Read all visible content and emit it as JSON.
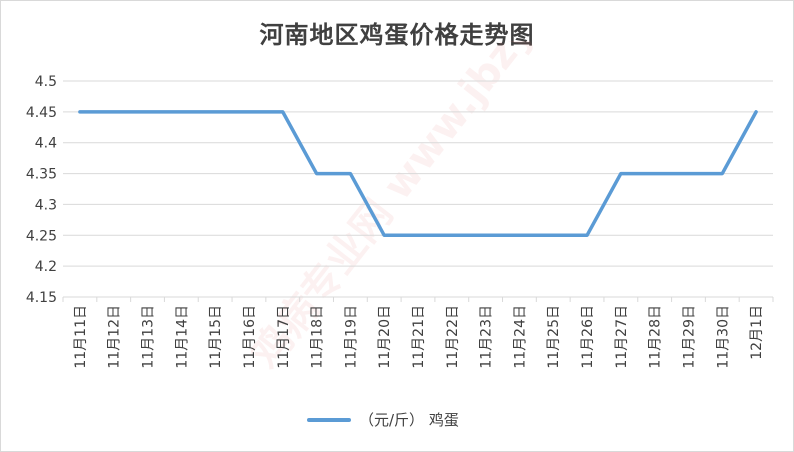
{
  "chart_data": {
    "type": "line",
    "title": "河南地区鸡蛋价格走势图",
    "categories": [
      "11月11日",
      "11月12日",
      "11月13日",
      "11月14日",
      "11月15日",
      "11月16日",
      "11月17日",
      "11月18日",
      "11月19日",
      "11月20日",
      "11月21日",
      "11月22日",
      "11月23日",
      "11月24日",
      "11月25日",
      "11月26日",
      "11月27日",
      "11月28日",
      "11月29日",
      "11月30日",
      "12月1日"
    ],
    "series": [
      {
        "name": "（元/斤） 鸡蛋",
        "values": [
          4.45,
          4.45,
          4.45,
          4.45,
          4.45,
          4.45,
          4.45,
          4.35,
          4.35,
          4.25,
          4.25,
          4.25,
          4.25,
          4.25,
          4.25,
          4.25,
          4.35,
          4.35,
          4.35,
          4.35,
          4.45
        ]
      }
    ],
    "ylim": [
      4.15,
      4.5
    ],
    "yticks": [
      "4.5",
      "4.45",
      "4.4",
      "4.35",
      "4.3",
      "4.25",
      "4.2",
      "4.15"
    ],
    "grid": true,
    "legend": "bottom",
    "color": "#5b9bd5"
  },
  "watermark": {
    "text": "鸡病专业网 www.jbzyw.com"
  }
}
